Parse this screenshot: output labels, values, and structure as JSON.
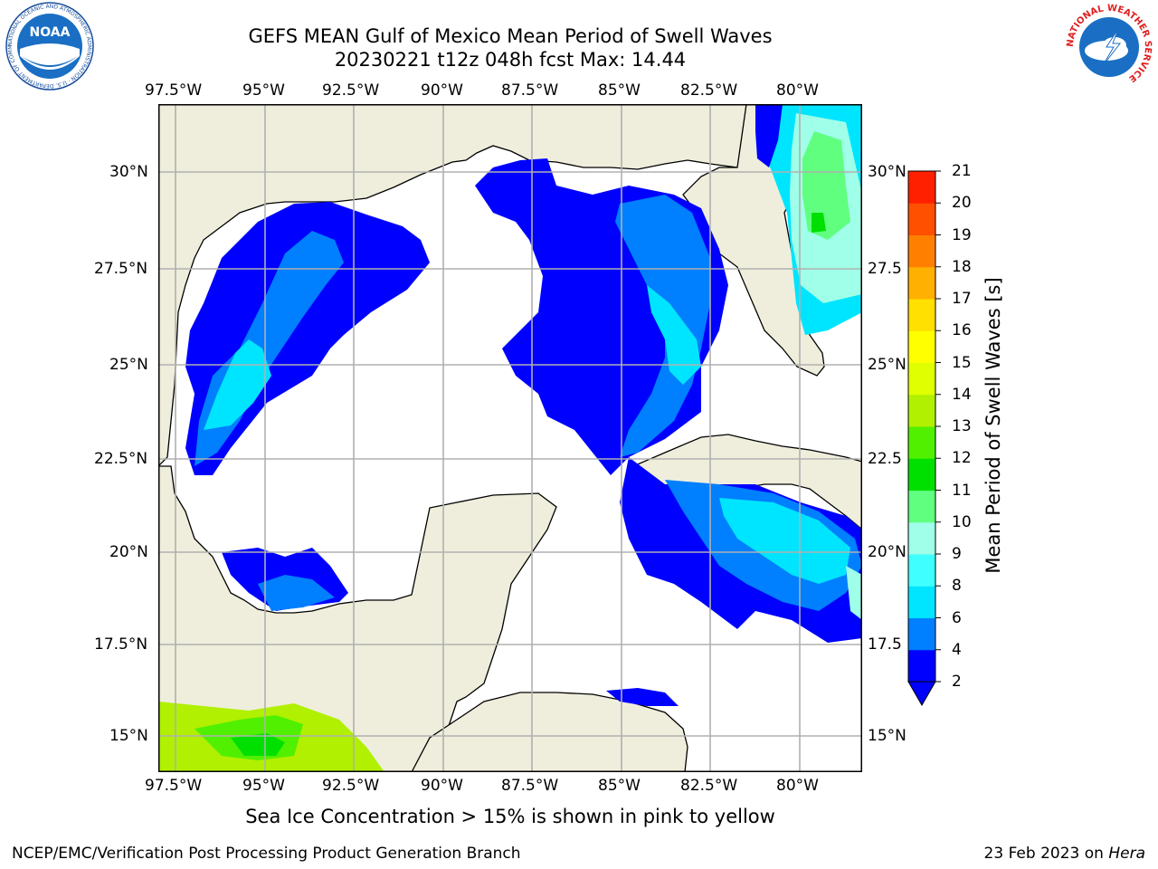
{
  "title": {
    "line1": "GEFS MEAN Gulf of Mexico Mean Period of Swell Waves",
    "line2": "20230221 t12z 048h fcst   Max: 14.44"
  },
  "map": {
    "lon_labels": [
      "97.5°W",
      "95°W",
      "92.5°W",
      "90°W",
      "87.5°W",
      "85°W",
      "82.5°W",
      "80°W"
    ],
    "lat_labels_left": [
      "30°N",
      "27.5°N",
      "25°N",
      "22.5°N",
      "20°N",
      "17.5°N",
      "15°N"
    ],
    "lat_labels_right": [
      "30°N",
      "27.5",
      "25°N",
      "22.5",
      "20°N",
      "17.5",
      "15°N"
    ],
    "colors": {
      "land": "#efeedc",
      "ocean": "#ffffff",
      "grid": "#b0b0b0",
      "coast": "#000000"
    }
  },
  "colorbar": {
    "label": "Mean Period of Swell Waves [s]",
    "ticks": [
      "2",
      "4",
      "6",
      "8",
      "9",
      "10",
      "11",
      "12",
      "13",
      "14",
      "15",
      "16",
      "17",
      "18",
      "19",
      "20",
      "21"
    ],
    "colors": [
      "#0000ff",
      "#007fff",
      "#00e5ff",
      "#40ffff",
      "#a0ffe8",
      "#60ff80",
      "#00e000",
      "#50f000",
      "#b0f000",
      "#e0ff00",
      "#ffff00",
      "#ffe000",
      "#ffb000",
      "#ff8000",
      "#ff5000",
      "#ff2000"
    ]
  },
  "caption": "Sea Ice Concentration > 15% is shown in pink to yellow",
  "footer": {
    "left": "NCEP/EMC/Verification Post Processing Product Generation Branch",
    "right_date": "23 Feb 2023 on",
    "right_host": "Hera"
  },
  "logos": {
    "left": {
      "text": "NOAA",
      "ring_text": "NATIONAL OCEANIC AND ATMOSPHERIC ADMINISTRATION · U.S. DEPARTMENT OF COMMERCE"
    },
    "right": {
      "ring_text": "NATIONAL WEATHER SERVICE"
    }
  }
}
